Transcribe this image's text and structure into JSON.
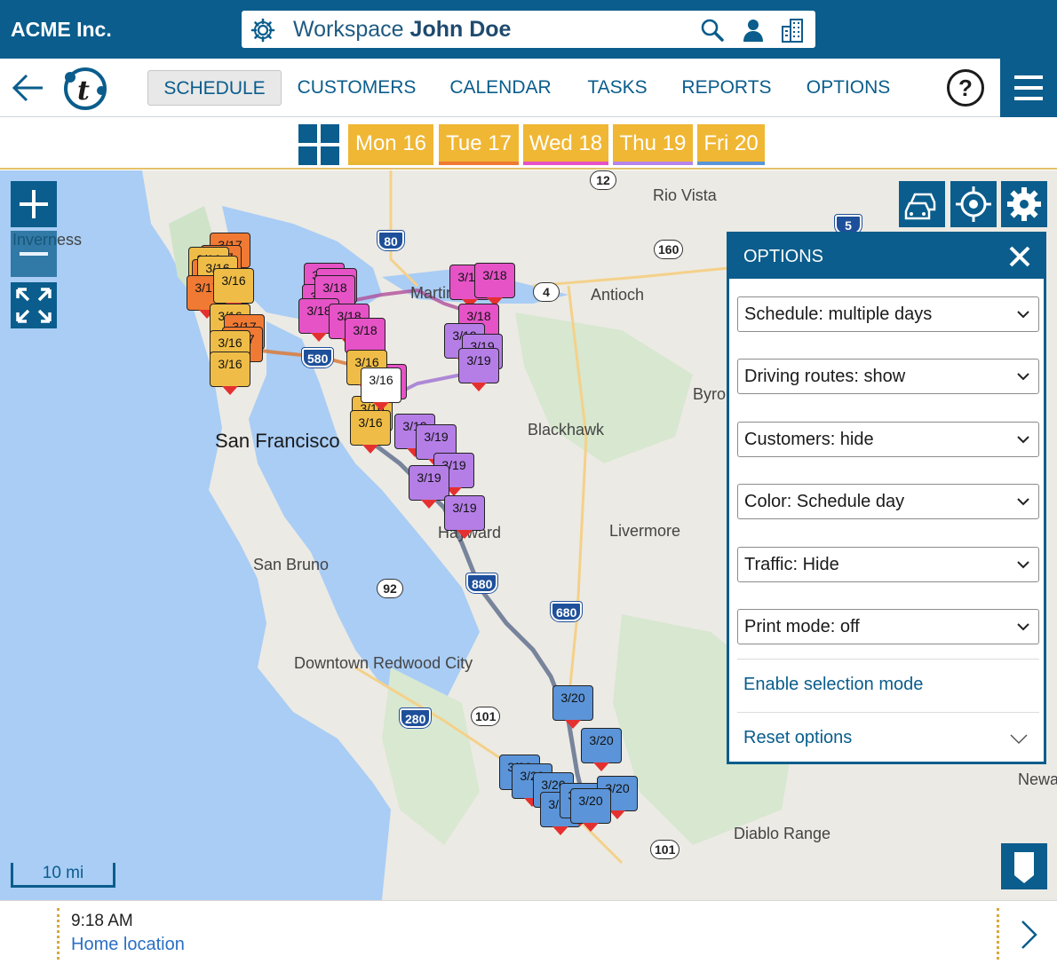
{
  "header": {
    "brand": "ACME Inc.",
    "workspace_prefix": "Workspace",
    "workspace_user": "John Doe",
    "icons": [
      "gear-icon",
      "search-icon",
      "user-icon",
      "building-icon"
    ]
  },
  "nav": {
    "items": [
      {
        "label": "SCHEDULE",
        "active": true
      },
      {
        "label": "CUSTOMERS",
        "active": false
      },
      {
        "label": "CALENDAR",
        "active": false
      },
      {
        "label": "TASKS",
        "active": false
      },
      {
        "label": "REPORTS",
        "active": false
      },
      {
        "label": "OPTIONS",
        "active": false
      }
    ],
    "help": "?"
  },
  "days": [
    {
      "label": "Mon 16",
      "color": "#f0b735",
      "underline": "#e9b634"
    },
    {
      "label": "Tue 17",
      "color": "#f0b735",
      "underline": "#f07a33"
    },
    {
      "label": "Wed 18",
      "color": "#f0b735",
      "underline": "#e553c6"
    },
    {
      "label": "Thu 19",
      "color": "#f0b735",
      "underline": "#b685ea"
    },
    {
      "label": "Fri 20",
      "color": "#f0b735",
      "underline": "#5b94d8"
    }
  ],
  "map": {
    "places": [
      "Inverness",
      "Rio Vista",
      "Martinez",
      "Antioch",
      "Byron",
      "San Francisco",
      "Blackhawk",
      "Hayward",
      "Livermore",
      "San Bruno",
      "Downtown Redwood City",
      "Newark",
      "Diablo Range"
    ],
    "highway_shields": [
      "12",
      "80",
      "160",
      "4",
      "5",
      "580",
      "880",
      "92",
      "680",
      "280",
      "101",
      "101"
    ],
    "scale": "10 mi",
    "marker_labels": {
      "mon": "3/16",
      "tue": "3/17",
      "wed": "3/18",
      "thu": "3/19",
      "fri": "3/20"
    },
    "colors": {
      "mon": "#efbd47",
      "tue": "#f07a33",
      "wed": "#e553c6",
      "thu": "#b47ee6",
      "fri": "#5b94d8",
      "brand": "#0a5d8c",
      "water": "#a9cdf5"
    }
  },
  "options_panel": {
    "title": "OPTIONS",
    "selects": [
      "Schedule: multiple days",
      "Driving routes: show",
      "Customers: hide",
      "Color: Schedule day",
      "Traffic: Hide",
      "Print mode: off"
    ],
    "link_selection": "Enable selection mode",
    "link_reset": "Reset options"
  },
  "bottom": {
    "time": "9:18 AM",
    "location": "Home location"
  }
}
